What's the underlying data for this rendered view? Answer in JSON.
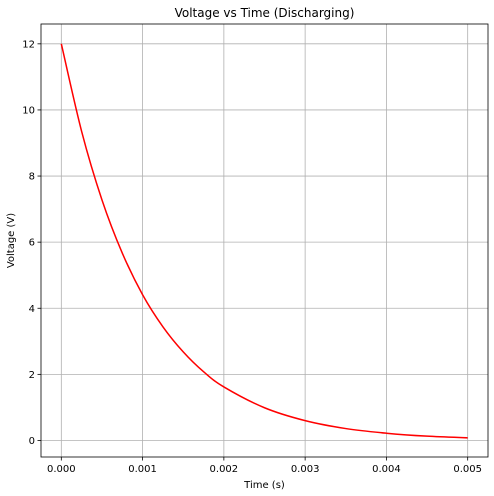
{
  "chart_data": {
    "type": "line",
    "title": "Voltage vs Time (Discharging)",
    "xlabel": "Time (s)",
    "ylabel": "Voltage (V)",
    "xlim": [
      -0.00025,
      0.00525
    ],
    "ylim": [
      -0.5,
      12.6
    ],
    "xticks": [
      0.0,
      0.001,
      0.002,
      0.003,
      0.004,
      0.005
    ],
    "xtick_labels": [
      "0.000",
      "0.001",
      "0.002",
      "0.003",
      "0.004",
      "0.005"
    ],
    "yticks": [
      0,
      2,
      4,
      6,
      8,
      10,
      12
    ],
    "ytick_labels": [
      "0",
      "2",
      "4",
      "6",
      "8",
      "10",
      "12"
    ],
    "grid": true,
    "series": [
      {
        "color": "#ff0000",
        "x": [
          0,
          0.00025,
          0.0005,
          0.00075,
          0.001,
          0.00125,
          0.0015,
          0.00175,
          0.002,
          0.0025,
          0.003,
          0.0035,
          0.004,
          0.0045,
          0.005
        ],
        "y": [
          12.0,
          9.35,
          7.28,
          5.67,
          4.41,
          3.44,
          2.68,
          2.08,
          1.62,
          0.99,
          0.6,
          0.36,
          0.22,
          0.13,
          0.08
        ]
      }
    ]
  }
}
